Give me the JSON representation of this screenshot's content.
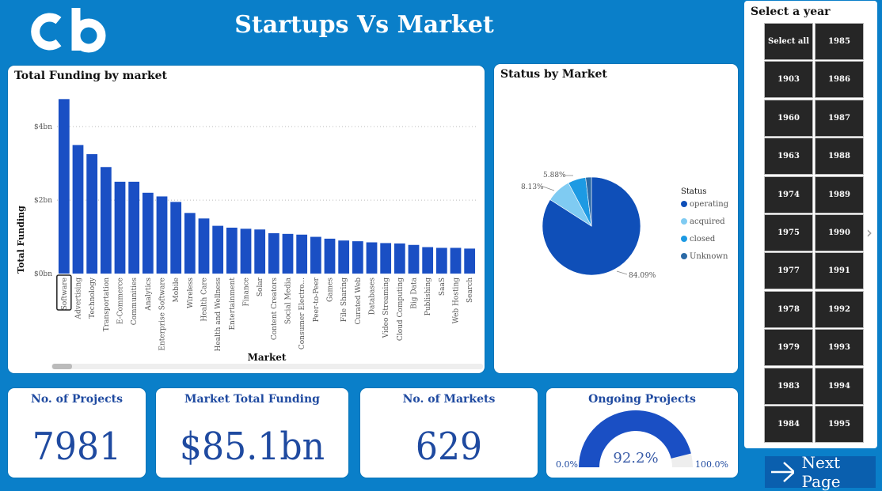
{
  "header": {
    "title": "Startups Vs Market",
    "logo_text": "cb"
  },
  "bar_chart": {
    "title": "Total Funding by market",
    "ylabel": "Total Funding",
    "xlabel": "Market",
    "ytick_labels": [
      "$0bn",
      "$2bn",
      "$4bn"
    ]
  },
  "pie_chart": {
    "title": "Status by Market",
    "legend_title": "Status",
    "labels": [
      "5.88%",
      "8.13%",
      "84.09%"
    ]
  },
  "kpis": {
    "projects": {
      "title": "No. of Projects",
      "value": "7981"
    },
    "funding": {
      "title": "Market Total Funding",
      "value": "$85.1bn"
    },
    "markets": {
      "title": "No. of Markets",
      "value": "629"
    },
    "ongoing": {
      "title": "Ongoing Projects",
      "value": "92.2%",
      "min": "0.0%",
      "max": "100.0%",
      "fraction": 0.922
    }
  },
  "year_slicer": {
    "title": "Select a year",
    "items": [
      "Select all",
      "1985",
      "1903",
      "1986",
      "1960",
      "1987",
      "1963",
      "1988",
      "1974",
      "1989",
      "1975",
      "1990",
      "1977",
      "1991",
      "1978",
      "1992",
      "1979",
      "1993",
      "1983",
      "1994",
      "1984",
      "1995"
    ]
  },
  "next_page": {
    "label": "Next Page"
  },
  "colors": {
    "background": "#0a7fc9",
    "bar": "#1a4fc4",
    "operating": "#0f4fb8",
    "acquired": "#7fcbf2",
    "closed": "#1d9ae3",
    "unknown": "#2b6aa6"
  },
  "chart_data": [
    {
      "type": "bar",
      "title": "Total Funding by market",
      "xlabel": "Market",
      "ylabel": "Total Funding",
      "categories": [
        "Software",
        "Advertising",
        "Technology",
        "Transportation",
        "E-Commerce",
        "Communities",
        "Analytics",
        "Enterprise Software",
        "Mobile",
        "Wireless",
        "Health Care",
        "Health and Wellness",
        "Entertainment",
        "Finance",
        "Solar",
        "Content Creators",
        "Social Media",
        "Consumer Electro...",
        "Peer-to-Peer",
        "Games",
        "File Sharing",
        "Curated Web",
        "Databases",
        "Video Streaming",
        "Cloud Computing",
        "Big Data",
        "Publishing",
        "SaaS",
        "Web Hosting",
        "Search"
      ],
      "values": [
        4.75,
        3.5,
        3.25,
        2.9,
        2.5,
        2.5,
        2.2,
        2.1,
        1.95,
        1.65,
        1.5,
        1.3,
        1.25,
        1.22,
        1.2,
        1.1,
        1.08,
        1.06,
        1.0,
        0.95,
        0.9,
        0.88,
        0.85,
        0.83,
        0.82,
        0.78,
        0.72,
        0.7,
        0.7,
        0.68
      ],
      "ylim": [
        0,
        4.8
      ],
      "yticks": [
        0,
        2,
        4
      ],
      "grid": true,
      "selected": "Software"
    },
    {
      "type": "pie",
      "title": "Status by Market",
      "legend_title": "Status",
      "legend_position": "right",
      "categories": [
        "operating",
        "acquired",
        "closed",
        "Unknown"
      ],
      "values": [
        84.09,
        8.13,
        5.88,
        1.9
      ]
    }
  ]
}
